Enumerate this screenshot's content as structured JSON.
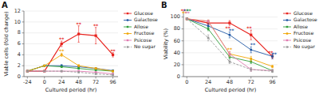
{
  "chart_data": [
    {
      "type": "line",
      "title": "A",
      "xlabel": "Cultured period (hr)",
      "ylabel": "Viable cells (fold change)",
      "x": [
        -24,
        0,
        24,
        48,
        72,
        96
      ],
      "xlim": [
        -28.8,
        103.2
      ],
      "xticks": [
        -24,
        0,
        24,
        48,
        72,
        96
      ],
      "ylim": [
        0,
        12
      ],
      "yticks": [
        0,
        2,
        4,
        6,
        8,
        10,
        12
      ],
      "grid": true,
      "legend": "upper right",
      "marker": "square",
      "series": [
        {
          "name": "Glucose",
          "color": "#e8231e",
          "line_style": "solid",
          "values": [
            1.0,
            1.0,
            6.0,
            7.8,
            7.5,
            4.0
          ],
          "errors": [
            0.0,
            0.0,
            0.5,
            1.5,
            1.5,
            0.4
          ]
        },
        {
          "name": "Galactose",
          "color": "#1f57a4",
          "line_style": "solid",
          "values": [
            1.0,
            2.0,
            2.0,
            1.8,
            1.5,
            1.1
          ],
          "errors": [
            0.0,
            0.1,
            0.2,
            0.2,
            0.15,
            0.1
          ]
        },
        {
          "name": "Allose",
          "color": "#2e9e3a",
          "line_style": "solid",
          "values": [
            1.0,
            2.0,
            1.8,
            1.5,
            1.2,
            1.0
          ],
          "errors": [
            0.0,
            0.1,
            0.15,
            0.15,
            0.1,
            0.1
          ]
        },
        {
          "name": "Fructose",
          "color": "#f0a500",
          "line_style": "solid",
          "values": [
            1.0,
            2.0,
            4.0,
            2.0,
            1.5,
            1.0
          ],
          "errors": [
            0.0,
            0.1,
            0.3,
            0.2,
            0.15,
            0.1
          ]
        },
        {
          "name": "Psicose",
          "color": "#e07ab0",
          "line_style": "solid",
          "values": [
            1.0,
            1.0,
            1.0,
            1.0,
            0.8,
            0.5
          ],
          "errors": [
            0.0,
            0.08,
            0.08,
            0.1,
            0.1,
            0.08
          ]
        },
        {
          "name": "No sugar",
          "color": "#999999",
          "line_style": "dashed",
          "values": [
            1.0,
            1.0,
            1.0,
            0.8,
            0.5,
            0.3
          ],
          "errors": [
            0.0,
            0.08,
            0.08,
            0.08,
            0.08,
            0.08
          ]
        }
      ],
      "annotations": [
        {
          "text": "**",
          "x": 24,
          "y": 6.5,
          "color": "#e8231e"
        },
        {
          "text": "**",
          "x": 48,
          "y": 9.3,
          "color": "#e8231e"
        },
        {
          "text": "**",
          "x": 72,
          "y": 9.0,
          "color": "#e8231e"
        },
        {
          "text": "**",
          "x": 96,
          "y": 4.4,
          "color": "#e8231e"
        },
        {
          "text": "**",
          "x": 24,
          "y": 4.3,
          "color": "#f0a500"
        }
      ]
    },
    {
      "type": "line",
      "title": "B",
      "xlabel": "Cultured period (hr)",
      "ylabel": "Viability (%)",
      "x": [
        0,
        24,
        48,
        72,
        96
      ],
      "xlim": [
        -3.84,
        101.76
      ],
      "xticks": [
        0,
        24,
        48,
        72,
        96
      ],
      "ylim": [
        0,
        110
      ],
      "yticks": [
        0,
        20,
        40,
        60,
        80,
        100
      ],
      "grid": true,
      "legend": "upper right",
      "marker": "square",
      "series": [
        {
          "name": "Glucose",
          "color": "#e8231e",
          "line_style": "solid",
          "values": [
            97,
            90,
            90,
            70,
            34
          ],
          "errors": [
            1,
            3,
            4,
            8,
            4
          ]
        },
        {
          "name": "Galactose",
          "color": "#1f57a4",
          "line_style": "solid",
          "values": [
            97,
            85,
            70,
            45,
            34
          ],
          "errors": [
            1,
            4,
            5,
            5,
            4
          ]
        },
        {
          "name": "Allose",
          "color": "#2e9e3a",
          "line_style": "solid",
          "values": [
            97,
            80,
            33,
            25,
            10
          ],
          "errors": [
            1,
            3,
            3,
            3,
            2
          ]
        },
        {
          "name": "Fructose",
          "color": "#f0a500",
          "line_style": "solid",
          "values": [
            97,
            93,
            38,
            30,
            17
          ],
          "errors": [
            1,
            2,
            4,
            4,
            2
          ]
        },
        {
          "name": "Psicose",
          "color": "#e07ab0",
          "line_style": "solid",
          "values": [
            97,
            93,
            38,
            12,
            10
          ],
          "errors": [
            1,
            2,
            4,
            3,
            2
          ]
        },
        {
          "name": "No sugar",
          "color": "#999999",
          "line_style": "dashed",
          "values": [
            97,
            65,
            25,
            12,
            9
          ],
          "errors": [
            1,
            5,
            3,
            3,
            2
          ]
        }
      ],
      "annotations": [
        {
          "text": "**",
          "x": -4,
          "y": 107,
          "color": "#e8231e"
        },
        {
          "text": "**",
          "x": -1,
          "y": 107,
          "color": "#1f57a4"
        },
        {
          "text": "**",
          "x": 2,
          "y": 107,
          "color": "#2e9e3a"
        },
        {
          "text": "**",
          "x": -2.5,
          "y": 103,
          "color": "#f0a500"
        },
        {
          "text": "**",
          "x": 0.5,
          "y": 103,
          "color": "#e07ab0"
        },
        {
          "text": "**",
          "x": 46,
          "y": 78,
          "color": "#e8231e"
        },
        {
          "text": "**",
          "x": 50,
          "y": 74,
          "color": "#1f57a4"
        },
        {
          "text": "**",
          "x": 48,
          "y": 43,
          "color": "#f0a500"
        },
        {
          "text": "**",
          "x": 70,
          "y": 78,
          "color": "#e8231e"
        },
        {
          "text": "**",
          "x": 74,
          "y": 50,
          "color": "#1f57a4"
        },
        {
          "text": "**",
          "x": 94,
          "y": 37,
          "color": "#e8231e"
        },
        {
          "text": "**",
          "x": 98,
          "y": 34,
          "color": "#1f57a4"
        }
      ]
    }
  ]
}
